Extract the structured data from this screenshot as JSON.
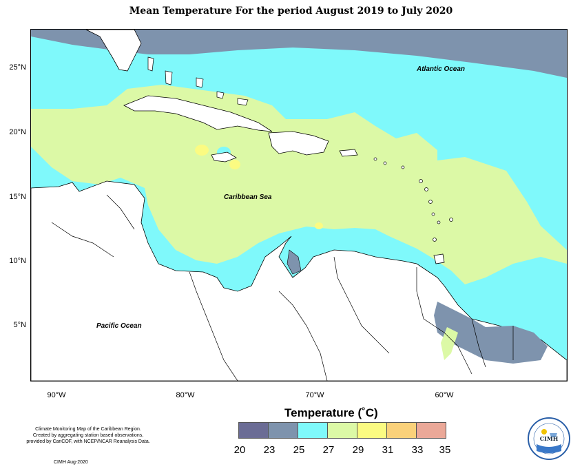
{
  "title": "Mean Temperature For the period August 2019 to July 2020",
  "map": {
    "labels": {
      "atlantic": "Atlantic Ocean",
      "caribbean": "Caribbean Sea",
      "pacific": "Pacific Ocean"
    },
    "lat_ticks": [
      "25°N",
      "20°N",
      "15°N",
      "10°N",
      "5°N"
    ],
    "lon_ticks": [
      "90°W",
      "80°W",
      "70°W",
      "60°W"
    ],
    "colors": {
      "c20_23": "#6b6c95",
      "c23_25": "#7e93ad",
      "c25_27": "#7ff9fb",
      "c27_29": "#dcf9a6",
      "c29_31": "#fbfb82",
      "c31_33": "#fad17a",
      "c33_35": "#eba898",
      "land": "#ffffff"
    }
  },
  "legend": {
    "title": "Temperature (˚C)",
    "ticks": [
      "20",
      "23",
      "25",
      "27",
      "29",
      "31",
      "33",
      "35"
    ]
  },
  "credit": {
    "line1": "Climate Monitoring Map of the Caribbean Region.",
    "line2": "Created by aggregating station based observations,",
    "line3": "provided by CariCOF, with NCEP/NCAR Reanalysis Data.",
    "date": "CIMH Aug-2020"
  },
  "logo": {
    "text": "CIMH"
  }
}
